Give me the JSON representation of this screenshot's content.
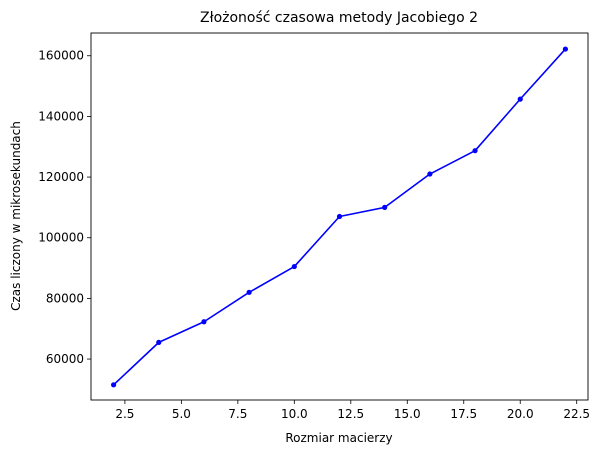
{
  "chart_data": {
    "type": "line",
    "title": "Złożoność czasowa metody Jacobiego 2",
    "xlabel": "Rozmiar macierzy",
    "ylabel": "Czas liczony w mikrosekundach",
    "xlim": [
      1.0,
      23.0
    ],
    "ylim": [
      46500,
      167500
    ],
    "x_ticks": [
      2.5,
      5.0,
      7.5,
      10.0,
      12.5,
      15.0,
      17.5,
      20.0,
      22.5
    ],
    "x_tick_labels": [
      "2.5",
      "5.0",
      "7.5",
      "10.0",
      "12.5",
      "15.0",
      "17.5",
      "20.0",
      "22.5"
    ],
    "y_ticks": [
      60000,
      80000,
      100000,
      120000,
      140000,
      160000
    ],
    "y_tick_labels": [
      "60000",
      "80000",
      "100000",
      "120000",
      "140000",
      "160000"
    ],
    "grid": false,
    "color": "#0000ff",
    "series": [
      {
        "x": [
          2,
          4,
          6,
          8,
          10,
          12,
          14,
          16,
          18,
          20,
          22
        ],
        "values": [
          51500,
          65500,
          72300,
          82000,
          90500,
          107000,
          110000,
          121000,
          128700,
          145700,
          162200
        ]
      }
    ]
  }
}
